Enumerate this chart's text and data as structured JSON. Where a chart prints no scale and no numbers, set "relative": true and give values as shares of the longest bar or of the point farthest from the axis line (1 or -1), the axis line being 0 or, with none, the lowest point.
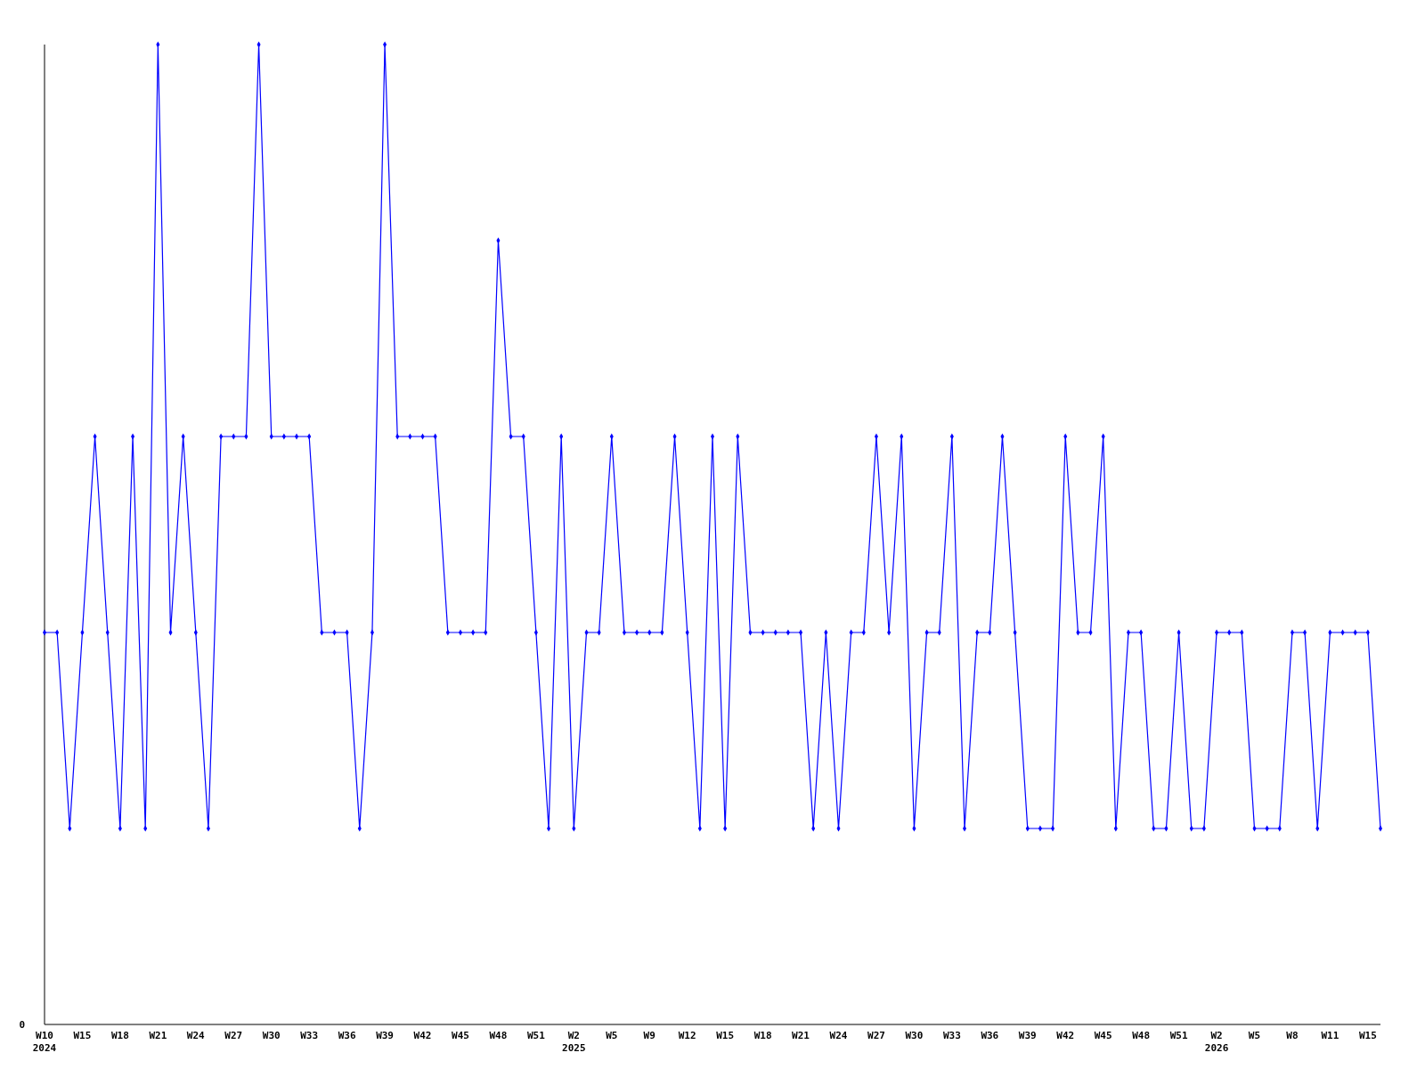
{
  "chart_data": {
    "type": "line",
    "relative": true,
    "marker": "diamond",
    "annotations": [
      "0"
    ],
    "categories": [
      "W10\n2024",
      null,
      null,
      "W15",
      null,
      null,
      "W18",
      null,
      null,
      "W21",
      null,
      null,
      "W24",
      null,
      null,
      "W27",
      null,
      null,
      "W30",
      null,
      null,
      "W33",
      null,
      null,
      "W36",
      null,
      null,
      "W39",
      null,
      null,
      "W42",
      null,
      null,
      "W45",
      null,
      null,
      "W48",
      null,
      null,
      "W51",
      null,
      null,
      "W2\n2025",
      null,
      null,
      "W5",
      null,
      null,
      "W9",
      null,
      null,
      "W12",
      null,
      null,
      "W15",
      null,
      null,
      "W18",
      null,
      null,
      "W21",
      null,
      null,
      "W24",
      null,
      null,
      "W27",
      null,
      null,
      "W30",
      null,
      null,
      "W33",
      null,
      null,
      "W36",
      null,
      null,
      "W39",
      null,
      null,
      "W42",
      null,
      null,
      "W45",
      null,
      null,
      "W48",
      null,
      null,
      "W51",
      null,
      null,
      "W2\n2026",
      null,
      null,
      "W5",
      null,
      null,
      "W8",
      null,
      null,
      "W11",
      null,
      null,
      "W15",
      null
    ],
    "series": [
      {
        "color": "#0000ff",
        "values": [
          0.4,
          0.4,
          0.2,
          0.4,
          0.6,
          0.4,
          0.2,
          0.6,
          0.2,
          1,
          0.4,
          0.6,
          0.4,
          0.2,
          0.6,
          0.6,
          0.6,
          1,
          0.6,
          0.6,
          0.6,
          0.6,
          0.4,
          0.4,
          0.4,
          0.2,
          0.4,
          1,
          0.6,
          0.6,
          0.6,
          0.6,
          0.4,
          0.4,
          0.4,
          0.4,
          0.8,
          0.6,
          0.6,
          0.4,
          0.2,
          0.6,
          0.2,
          0.4,
          0.4,
          0.6,
          0.4,
          0.4,
          0.4,
          0.4,
          0.6,
          0.4,
          0.2,
          0.6,
          0.2,
          0.6,
          0.4,
          0.4,
          0.4,
          0.4,
          0.4,
          0.2,
          0.4,
          0.2,
          0.4,
          0.4,
          0.6,
          0.4,
          0.6,
          0.2,
          0.4,
          0.4,
          0.6,
          0.2,
          0.4,
          0.4,
          0.6,
          0.4,
          0.2,
          0.2,
          0.2,
          0.6,
          0.4,
          0.4,
          0.6,
          0.2,
          0.4,
          0.4,
          0.2,
          0.2,
          0.4,
          0.2,
          0.2,
          0.4,
          0.4,
          0.4,
          0.2,
          0.2,
          0.2,
          0.4,
          0.4,
          0.2,
          0.4,
          0.4,
          0.4,
          0.4,
          0.2
        ]
      }
    ]
  }
}
